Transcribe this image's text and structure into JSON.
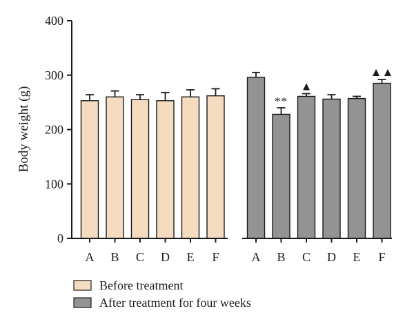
{
  "chart_data": {
    "type": "bar",
    "title": "",
    "xlabel": "",
    "ylabel": "Body weight (g)",
    "ylim": [
      0,
      400
    ],
    "yticks": [
      0,
      100,
      200,
      300,
      400
    ],
    "categories": [
      "A",
      "B",
      "C",
      "D",
      "E",
      "F"
    ],
    "grid": false,
    "legend_position": "bottom-left",
    "series": [
      {
        "name": "Before treatment",
        "color": "#f5dcc0",
        "values": [
          253,
          260,
          255,
          253,
          260,
          262
        ],
        "errors": [
          11,
          11,
          9,
          15,
          13,
          13
        ],
        "annotations": [
          "",
          "",
          "",
          "",
          "",
          ""
        ]
      },
      {
        "name": "After treatment for four weeks",
        "color": "#939396",
        "values": [
          296,
          228,
          261,
          256,
          257,
          285
        ],
        "errors": [
          9,
          12,
          5,
          8,
          4,
          7
        ],
        "annotations": [
          "",
          "**",
          "▲",
          "",
          "",
          "▲▲"
        ]
      }
    ]
  }
}
